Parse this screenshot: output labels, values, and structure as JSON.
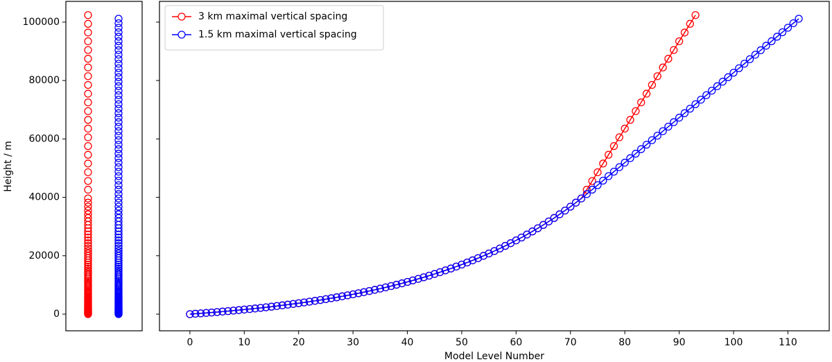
{
  "chart_data": {
    "type": "line",
    "xlabel": "Model Level Number",
    "ylabel": "Height / m",
    "xlim": [
      -5.6,
      117.6
    ],
    "ylim": [
      -5700,
      107100
    ],
    "xticks": [
      0,
      10,
      20,
      30,
      40,
      50,
      60,
      70,
      80,
      90,
      100,
      110
    ],
    "yticks": [
      0,
      20000,
      40000,
      60000,
      80000,
      100000
    ],
    "legend": "upper left",
    "x": [
      0,
      1,
      2,
      3,
      4,
      5,
      6,
      7,
      8,
      9,
      10,
      11,
      12,
      13,
      14,
      15,
      16,
      17,
      18,
      19,
      20,
      21,
      22,
      23,
      24,
      25,
      26,
      27,
      28,
      29,
      30,
      31,
      32,
      33,
      34,
      35,
      36,
      37,
      38,
      39,
      40,
      41,
      42,
      43,
      44,
      45,
      46,
      47,
      48,
      49,
      50,
      51,
      52,
      53,
      54,
      55,
      56,
      57,
      58,
      59,
      60,
      61,
      62,
      63,
      64,
      65,
      66,
      67,
      68,
      69,
      70,
      71,
      72,
      73,
      74,
      75,
      76,
      77,
      78,
      79,
      80,
      81,
      82,
      83,
      84,
      85,
      86,
      87,
      88,
      89,
      90,
      91,
      92,
      93,
      94,
      95,
      96,
      97,
      98,
      99,
      100,
      101,
      102,
      103,
      104,
      105,
      106,
      107,
      108,
      109,
      110,
      111,
      112
    ],
    "series": [
      {
        "name": "3 km maximal vertical spacing",
        "color": "#ff0000",
        "values": [
          0,
          134,
          272,
          416,
          564,
          717,
          875,
          1039,
          1208,
          1383,
          1564,
          1751,
          1944,
          2144,
          2351,
          2565,
          2785,
          3014,
          3250,
          3494,
          3746,
          4007,
          4277,
          4556,
          4845,
          5143,
          5451,
          5770,
          6100,
          6440,
          6792,
          7157,
          7533,
          7923,
          8325,
          8741,
          9172,
          9616,
          10076,
          10552,
          11043,
          11552,
          12077,
          12621,
          13182,
          13763,
          14364,
          14985,
          15626,
          16290,
          16976,
          17686,
          18419,
          19177,
          19961,
          20772,
          21610,
          22476,
          23372,
          24299,
          25256,
          26246,
          27270,
          28328,
          29422,
          30554,
          31723,
          32932,
          34183,
          35475,
          36811,
          38193,
          39621,
          42611,
          45601,
          48591,
          51581,
          54571,
          57561,
          60551,
          63541,
          66531,
          69521,
          72511,
          75501,
          78491,
          81481,
          84471,
          87461,
          90451,
          93441,
          96431,
          99421,
          102411,
          null,
          null,
          null,
          null,
          null,
          null,
          null,
          null,
          null,
          null,
          null,
          null,
          null,
          null,
          null,
          null,
          null,
          null,
          null
        ]
      },
      {
        "name": "1.5 km maximal vertical spacing",
        "color": "#0000ff",
        "values": [
          0,
          134,
          272,
          416,
          564,
          717,
          875,
          1039,
          1208,
          1383,
          1564,
          1751,
          1944,
          2144,
          2351,
          2565,
          2785,
          3014,
          3250,
          3494,
          3746,
          4007,
          4277,
          4556,
          4845,
          5143,
          5451,
          5770,
          6100,
          6440,
          6792,
          7157,
          7533,
          7923,
          8325,
          8741,
          9172,
          9616,
          10076,
          10552,
          11043,
          11552,
          12077,
          12621,
          13182,
          13763,
          14364,
          14985,
          15626,
          16290,
          16976,
          17686,
          18419,
          19177,
          19961,
          20772,
          21610,
          22476,
          23372,
          24299,
          25256,
          26246,
          27270,
          28328,
          29422,
          30554,
          31723,
          32932,
          34183,
          35475,
          36811,
          38193,
          39621,
          41098,
          42638,
          44178,
          45718,
          47258,
          48798,
          50338,
          51878,
          53418,
          54958,
          56498,
          58038,
          59578,
          61118,
          62658,
          64198,
          65738,
          67278,
          68818,
          70358,
          71898,
          73438,
          74978,
          76518,
          78058,
          79598,
          81138,
          82678,
          84218,
          85758,
          87298,
          88838,
          90378,
          91918,
          93458,
          94998,
          96538,
          98078,
          99618,
          101158
        ]
      }
    ]
  }
}
